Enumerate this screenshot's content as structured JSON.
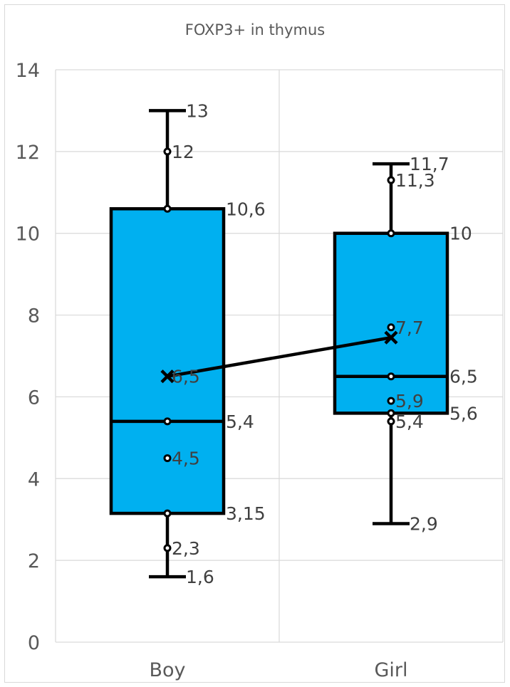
{
  "chart_data": {
    "type": "box",
    "title": "FOXP3+ in thymus",
    "xlabel": "",
    "ylabel": "",
    "ylim": [
      0,
      14
    ],
    "yticks": [
      0,
      2,
      4,
      6,
      8,
      10,
      12,
      14
    ],
    "categories": [
      "Boy",
      "Girl"
    ],
    "grid": true,
    "legend": "none",
    "box_color": "#00b0f0",
    "outline_color": "#000000",
    "label_color": "#404040",
    "series": [
      {
        "min": 1.6,
        "q1": 3.15,
        "median": 5.4,
        "q3": 10.6,
        "max": 13,
        "mean": 6.5,
        "points": [
          2.3,
          3.15,
          4.5,
          5.4,
          10.6,
          12
        ],
        "labels": [
          {
            "value": 13,
            "text": "13"
          },
          {
            "value": 12,
            "text": "12"
          },
          {
            "value": 10.6,
            "text": "10,6"
          },
          {
            "value": 6.5,
            "text": "6,5"
          },
          {
            "value": 5.4,
            "text": "5,4"
          },
          {
            "value": 4.5,
            "text": "4,5"
          },
          {
            "value": 3.15,
            "text": "3,15"
          },
          {
            "value": 2.3,
            "text": "2,3"
          },
          {
            "value": 1.6,
            "text": "1,6"
          }
        ]
      },
      {
        "min": 2.9,
        "q1": 5.6,
        "median": 6.5,
        "q3": 10,
        "max": 11.7,
        "mean": 7.45,
        "points": [
          5.4,
          5.6,
          5.9,
          6.5,
          7.7,
          10,
          11.3
        ],
        "labels": [
          {
            "value": 11.7,
            "text": "11,7"
          },
          {
            "value": 11.3,
            "text": "11,3"
          },
          {
            "value": 10,
            "text": "10"
          },
          {
            "value": 7.7,
            "text": "7,7"
          },
          {
            "value": 6.5,
            "text": "6,5"
          },
          {
            "value": 5.9,
            "text": "5,9"
          },
          {
            "value": 5.6,
            "text": "5,6"
          },
          {
            "value": 5.4,
            "text": "5,4"
          },
          {
            "value": 2.9,
            "text": "2,9"
          }
        ]
      }
    ]
  }
}
